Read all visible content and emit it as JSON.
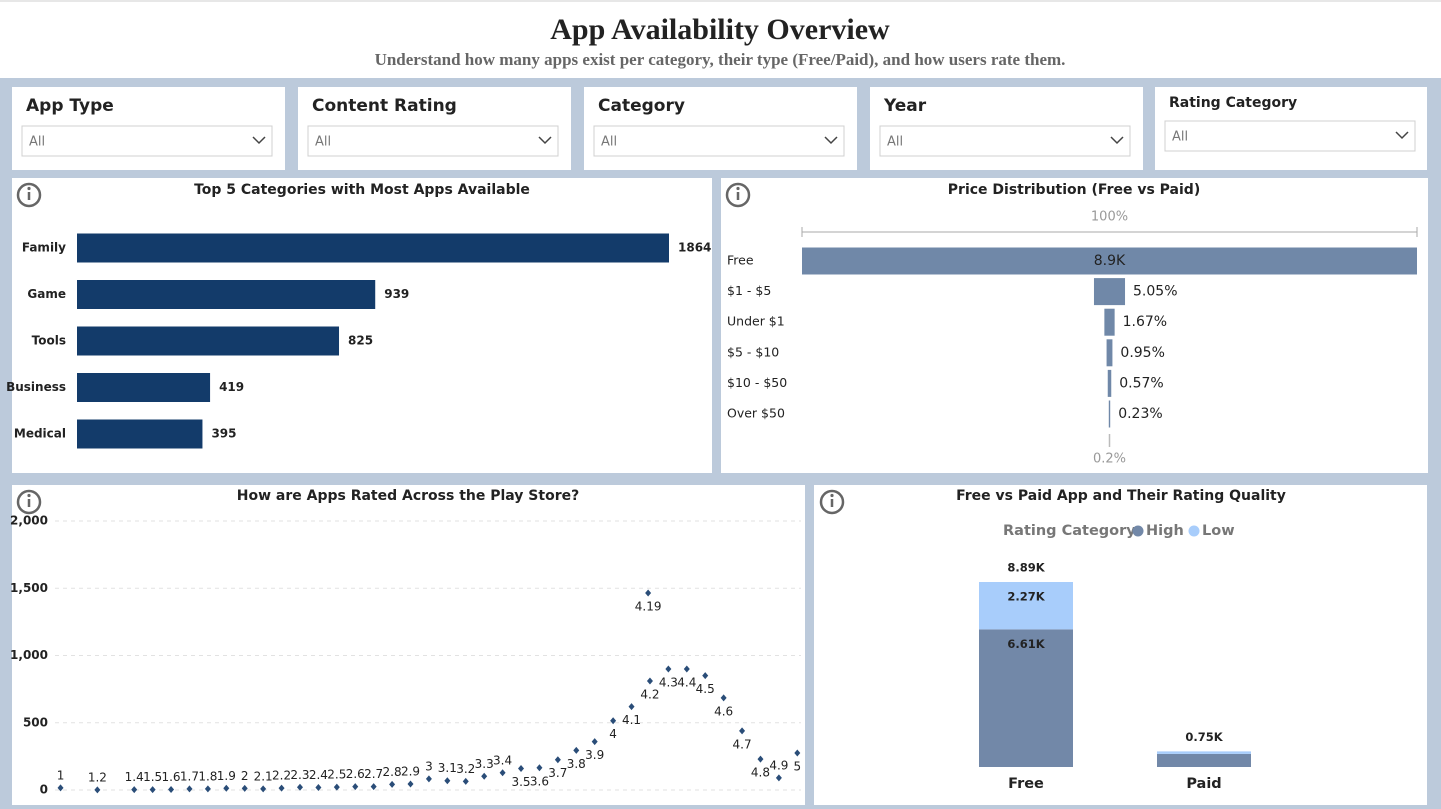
{
  "header": {
    "title": "App Availability Overview",
    "subtitle": "Understand how many apps exist per category, their type (Free/Paid), and how users rate them."
  },
  "filters": [
    {
      "label": "App Type",
      "value": "All"
    },
    {
      "label": "Content Rating",
      "value": "All"
    },
    {
      "label": "Category",
      "value": "All"
    },
    {
      "label": "Year",
      "value": "All"
    },
    {
      "label": "Rating Category",
      "value": "All"
    }
  ],
  "chart_data": [
    {
      "type": "bar",
      "orientation": "horizontal",
      "title": "Top 5 Categories with Most Apps Available",
      "categories": [
        "Family",
        "Game",
        "Tools",
        "Business",
        "Medical"
      ],
      "values": [
        1864,
        939,
        825,
        419,
        395
      ],
      "color": "#133b6a"
    },
    {
      "type": "funnel",
      "title": "Price Distribution (Free vs Paid)",
      "categories": [
        "Free",
        "$1 - $5",
        "Under $1",
        "$5 - $10",
        "$10 - $50",
        "Over $50"
      ],
      "values": [
        100,
        5.05,
        1.67,
        0.95,
        0.57,
        0.23
      ],
      "value_labels": [
        "100%",
        "5.05%",
        "1.67%",
        "0.95%",
        "0.57%",
        "0.23%"
      ],
      "first_count": {
        "value": 8900,
        "label": "8.9K"
      },
      "bottom_label": {
        "value": 0.23,
        "label": "0.2%"
      },
      "color": "#7088a8"
    },
    {
      "type": "scatter",
      "title": "How are Apps Rated Across the Play Store?",
      "x": [
        1,
        1.2,
        1.4,
        1.5,
        1.6,
        1.7,
        1.8,
        1.9,
        2,
        2.1,
        2.2,
        2.3,
        2.4,
        2.5,
        2.6,
        2.7,
        2.8,
        2.9,
        3,
        3.1,
        3.2,
        3.3,
        3.4,
        3.5,
        3.6,
        3.7,
        3.8,
        3.9,
        4,
        4.1,
        4.19,
        4.2,
        4.3,
        4.4,
        4.5,
        4.6,
        4.7,
        4.8,
        4.9,
        5
      ],
      "values": [
        16,
        1,
        3,
        3,
        4,
        8,
        8,
        13,
        12,
        8,
        14,
        20,
        19,
        21,
        25,
        25,
        42,
        45,
        83,
        69,
        64,
        102,
        128,
        160,
        165,
        225,
        295,
        360,
        515,
        620,
        1465,
        810,
        900,
        900,
        850,
        685,
        440,
        230,
        90,
        275
      ],
      "xlim": [
        0.97,
        5.02
      ],
      "ylim": [
        0,
        2000
      ],
      "yticks": [
        0,
        500,
        {
          "value": 1000,
          "label": "1,000"
        },
        {
          "value": 1500,
          "label": "1,500"
        },
        {
          "value": 2000,
          "label": "2,000"
        }
      ],
      "grid": true,
      "color": "#2a4d78"
    },
    {
      "type": "stacked_bar",
      "title": "Free vs Paid App and Their Rating Quality",
      "legend_title": "Rating Category",
      "categories": [
        "Free",
        "Paid"
      ],
      "series": [
        {
          "name": "High",
          "color": "#7288a8",
          "values": [
            6612,
            630
          ],
          "value_labels": [
            "6.61K",
            null
          ]
        },
        {
          "name": "Low",
          "color": "#a8cdfb",
          "values": [
            2274,
            120
          ],
          "value_labels": [
            "2.27K",
            null
          ]
        }
      ],
      "totals": [
        {
          "value": 8886,
          "label": "8.89K"
        },
        {
          "value": 750,
          "label": "0.75K"
        }
      ]
    }
  ]
}
